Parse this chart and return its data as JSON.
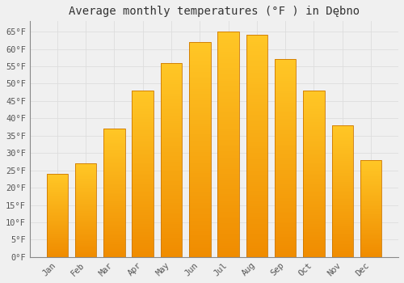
{
  "title": "Average monthly temperatures (°F ) in Dębno",
  "months": [
    "Jan",
    "Feb",
    "Mar",
    "Apr",
    "May",
    "Jun",
    "Jul",
    "Aug",
    "Sep",
    "Oct",
    "Nov",
    "Dec"
  ],
  "values": [
    24,
    27,
    37,
    48,
    56,
    62,
    65,
    64,
    57,
    48,
    38,
    28
  ],
  "bar_color_top": "#FFC726",
  "bar_color_bottom": "#F08C00",
  "bar_edge_color": "#CC7700",
  "background_color": "#F0F0F0",
  "plot_bg_color": "#F0F0F0",
  "grid_color": "#DDDDDD",
  "ylim": [
    0,
    68
  ],
  "yticks": [
    0,
    5,
    10,
    15,
    20,
    25,
    30,
    35,
    40,
    45,
    50,
    55,
    60,
    65
  ],
  "ytick_labels": [
    "0°F",
    "5°F",
    "10°F",
    "15°F",
    "20°F",
    "25°F",
    "30°F",
    "35°F",
    "40°F",
    "45°F",
    "50°F",
    "55°F",
    "60°F",
    "65°F"
  ],
  "title_fontsize": 10,
  "tick_fontsize": 7.5,
  "font_family": "monospace",
  "bar_width": 0.75
}
